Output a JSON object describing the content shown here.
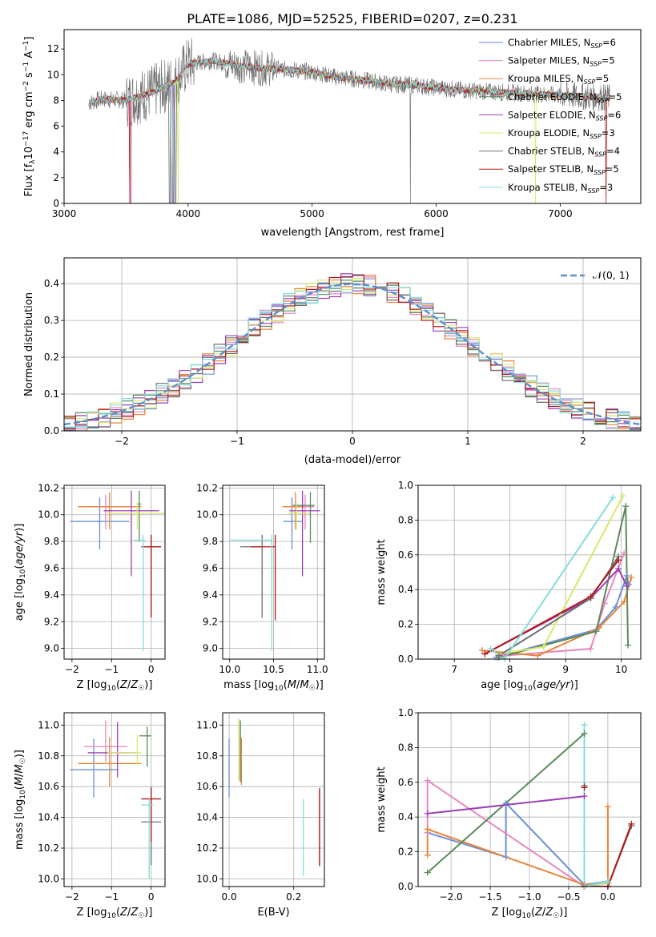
{
  "title": "PLATE=1086, MJD=52525, FIBERID=0207, z=0.231",
  "colors": [
    "#6b8fd6",
    "#e887c0",
    "#e8843a",
    "#5a8a5a",
    "#9b3fb5",
    "#d8e86a",
    "#6d6d6d",
    "#b31b1b",
    "#86dcdc"
  ],
  "chart_data": [
    {
      "type": "line",
      "name": "spectrum",
      "xlabel": "wavelength [Angstrom, rest frame]",
      "ylabel": "Flux [f_λ 10^-17 erg cm^-2 s^-1 A^-1]",
      "xlim": [
        3000,
        7650
      ],
      "ylim": [
        0,
        13.5
      ],
      "xticks": [
        "3000",
        "4000",
        "5000",
        "6000",
        "7000"
      ],
      "yticks": [
        "0",
        "2",
        "4",
        "6",
        "8",
        "10",
        "12"
      ],
      "legend": [
        "Chabrier MILES, N_SSP=6",
        "Salpeter MILES, N_SSP=5",
        "Kroupa MILES, N_SSP=5",
        "Chabrier ELODIE, N_SSP=5",
        "Salpeter ELODIE, N_SSP=6",
        "Kroupa ELODIE, N_SSP=3",
        "Chabrier STELIB, N_SSP=4",
        "Salpeter STELIB, N_SSP=5",
        "Kroupa STELIB, N_SSP=3"
      ],
      "legend_position": "upper-right",
      "continuum": [
        [
          3200,
          7.8
        ],
        [
          3300,
          8.1
        ],
        [
          3500,
          8.0
        ],
        [
          3700,
          8.6
        ],
        [
          3900,
          9.5
        ],
        [
          4000,
          10.8
        ],
        [
          4200,
          11.1
        ],
        [
          4400,
          10.7
        ],
        [
          4600,
          10.5
        ],
        [
          4800,
          10.4
        ],
        [
          5000,
          10.2
        ],
        [
          5200,
          9.8
        ],
        [
          5400,
          9.6
        ],
        [
          5600,
          9.3
        ],
        [
          5800,
          9.2
        ],
        [
          6000,
          9.0
        ],
        [
          6200,
          8.8
        ],
        [
          6400,
          8.7
        ],
        [
          6600,
          8.6
        ],
        [
          6800,
          8.5
        ],
        [
          7000,
          8.4
        ],
        [
          7200,
          8.3
        ],
        [
          7400,
          8.2
        ]
      ]
    },
    {
      "type": "histogram",
      "name": "residuals",
      "xlabel": "(data-model)/error",
      "ylabel": "Normed distribution",
      "xlim": [
        -2.5,
        2.5
      ],
      "ylim": [
        0,
        0.47
      ],
      "xticks": [
        "−2",
        "−1",
        "0",
        "1",
        "2"
      ],
      "yticks": [
        "0.0",
        "0.1",
        "0.2",
        "0.3",
        "0.4"
      ],
      "legend": [
        "𝒩(0, 1)"
      ],
      "legend_position": "upper-right",
      "bin_width": 0.1
    },
    {
      "type": "scatter",
      "name": "age-vs-Z",
      "xlabel": "Z [log10(Z/Z☉)]",
      "ylabel": "age  [log10(age/yr)]",
      "xlim": [
        -2.2,
        0.35
      ],
      "ylim": [
        8.92,
        10.22
      ],
      "xticks": [
        "−2",
        "−1",
        "0"
      ],
      "yticks": [
        "9.0",
        "9.2",
        "9.4",
        "9.6",
        "9.8",
        "10.0",
        "10.2"
      ],
      "points": [
        {
          "x": -1.3,
          "xerr": [
            0.75,
            0.75
          ],
          "y": 9.95,
          "yerr": [
            0.21,
            0.18
          ]
        },
        {
          "x": -1.15,
          "xerr": [
            0.55,
            0.55
          ],
          "y": 10.06,
          "yerr": [
            0.17,
            0.09
          ]
        },
        {
          "x": -1.05,
          "xerr": [
            0.8,
            0.8
          ],
          "y": 10.06,
          "yerr": [
            0.17,
            0.11
          ]
        },
        {
          "x": -0.3,
          "xerr": [
            0.05,
            0.05
          ],
          "y": 10.08,
          "yerr": [
            0.28,
            0.1
          ]
        },
        {
          "x": -0.5,
          "xerr": [
            0.7,
            0.7
          ],
          "y": 10.03,
          "yerr": [
            0.49,
            0.15
          ]
        },
        {
          "x": -0.35,
          "xerr": [
            0.75,
            0.75
          ],
          "y": 10.01,
          "yerr": [
            0.12,
            0.08
          ]
        },
        {
          "x": 0.0,
          "xerr": [
            0.2,
            0.25
          ],
          "y": 9.76,
          "yerr": [
            0.52,
            0.09
          ]
        },
        {
          "x": 0.0,
          "xerr": [
            0.25,
            0.25
          ],
          "y": 9.76,
          "yerr": [
            0.53,
            0.09
          ]
        },
        {
          "x": -0.2,
          "xerr": [
            0.25,
            0.05
          ],
          "y": 9.81,
          "yerr": [
            0.83,
            0.04
          ]
        }
      ]
    },
    {
      "type": "scatter",
      "name": "age-vs-mass",
      "xlabel": "mass [log10(M/M☉)]",
      "ylabel": "",
      "xlim": [
        9.92,
        11.08
      ],
      "ylim": [
        8.92,
        10.22
      ],
      "xticks": [
        "10.0",
        "10.5",
        "11.0"
      ],
      "yticks": [
        "9.0",
        "9.2",
        "9.4",
        "9.6",
        "9.8",
        "10.0",
        "10.2"
      ],
      "points": [
        {
          "x": 10.71,
          "xerr": [
            0.1,
            0.12
          ],
          "y": 9.95,
          "yerr": [
            0.21,
            0.18
          ]
        },
        {
          "x": 10.86,
          "xerr": [
            0.1,
            0.1
          ],
          "y": 10.06,
          "yerr": [
            0.17,
            0.09
          ]
        },
        {
          "x": 10.75,
          "xerr": [
            0.15,
            0.1
          ],
          "y": 10.06,
          "yerr": [
            0.17,
            0.11
          ]
        },
        {
          "x": 10.92,
          "xerr": [
            0.2,
            0.05
          ],
          "y": 10.07,
          "yerr": [
            0.28,
            0.1
          ]
        },
        {
          "x": 10.83,
          "xerr": [
            0.15,
            0.2
          ],
          "y": 10.03,
          "yerr": [
            0.49,
            0.15
          ]
        },
        {
          "x": 10.76,
          "xerr": [
            0.1,
            0.15
          ],
          "y": 10.01,
          "yerr": [
            0.12,
            0.08
          ]
        },
        {
          "x": 10.37,
          "xerr": [
            0.25,
            0.0
          ],
          "y": 9.76,
          "yerr": [
            0.53,
            0.09
          ]
        },
        {
          "x": 10.52,
          "xerr": [
            0.28,
            0.0
          ],
          "y": 9.76,
          "yerr": [
            0.55,
            0.09
          ]
        },
        {
          "x": 10.48,
          "xerr": [
            0.48,
            0.0
          ],
          "y": 9.81,
          "yerr": [
            0.83,
            0.04
          ]
        }
      ]
    },
    {
      "type": "line",
      "name": "mass-weight-vs-age",
      "xlabel": "age  [log10(age/yr)]",
      "ylabel": "mass weight",
      "xlim": [
        6.35,
        10.35
      ],
      "ylim": [
        0,
        1.0
      ],
      "xticks": [
        "7",
        "8",
        "9",
        "10"
      ],
      "yticks": [
        "0.0",
        "0.2",
        "0.4",
        "0.6",
        "0.8",
        "1.0"
      ],
      "series": [
        {
          "x": [
            7.75,
            9.55,
            9.9,
            10.1,
            10.13
          ],
          "y": [
            0.01,
            0.17,
            0.3,
            0.48,
            0.43
          ]
        },
        {
          "x": [
            7.9,
            9.45,
            9.7,
            10.05
          ],
          "y": [
            0.02,
            0.06,
            0.32,
            0.61
          ]
        },
        {
          "x": [
            7.5,
            8.5,
            9.6,
            10.05,
            10.18
          ],
          "y": [
            0.05,
            0.02,
            0.18,
            0.33,
            0.47
          ]
        },
        {
          "x": [
            7.8,
            9.55,
            10.08,
            10.12
          ],
          "y": [
            0.01,
            0.16,
            0.88,
            0.08
          ]
        },
        {
          "x": [
            7.55,
            9.45,
            9.95,
            10.1
          ],
          "y": [
            0.03,
            0.35,
            0.52,
            0.42
          ]
        },
        {
          "x": [
            7.8,
            8.6,
            10.03
          ],
          "y": [
            0.03,
            0.07,
            0.94
          ]
        },
        {
          "x": [
            7.8,
            9.45,
            9.95
          ],
          "y": [
            0.02,
            0.35,
            0.59
          ]
        },
        {
          "x": [
            7.55,
            9.45,
            9.95
          ],
          "y": [
            0.03,
            0.36,
            0.57
          ]
        },
        {
          "x": [
            7.65,
            7.9,
            9.85
          ],
          "y": [
            0.06,
            0.0,
            0.93
          ]
        }
      ]
    },
    {
      "type": "scatter",
      "name": "mass-vs-Z",
      "xlabel": "Z [log10(Z/Z☉)]",
      "ylabel": "mass [log10(M/M☉)]",
      "xlim": [
        -2.2,
        0.35
      ],
      "ylim": [
        9.95,
        11.08
      ],
      "xticks": [
        "−2",
        "−1",
        "0"
      ],
      "yticks": [
        "10.0",
        "10.2",
        "10.4",
        "10.6",
        "10.8",
        "11.0"
      ],
      "points": [
        {
          "x": -1.45,
          "xerr": [
            0.6,
            0.6
          ],
          "y": 10.71,
          "yerr": [
            0.18,
            0.2
          ]
        },
        {
          "x": -1.15,
          "xerr": [
            0.55,
            0.55
          ],
          "y": 10.86,
          "yerr": [
            0.1,
            0.17
          ]
        },
        {
          "x": -1.05,
          "xerr": [
            0.8,
            0.8
          ],
          "y": 10.75,
          "yerr": [
            0.15,
            0.17
          ]
        },
        {
          "x": -0.1,
          "xerr": [
            0.2,
            0.1
          ],
          "y": 10.93,
          "yerr": [
            0.2,
            0.06
          ]
        },
        {
          "x": -0.85,
          "xerr": [
            0.75,
            0.45
          ],
          "y": 10.82,
          "yerr": [
            0.16,
            0.2
          ]
        },
        {
          "x": -0.35,
          "xerr": [
            0.75,
            0.1
          ],
          "y": 10.82,
          "yerr": [
            0.08,
            0.12
          ]
        },
        {
          "x": 0.0,
          "xerr": [
            0.25,
            0.25
          ],
          "y": 10.37,
          "yerr": [
            0.28,
            0.23
          ]
        },
        {
          "x": 0.0,
          "xerr": [
            0.25,
            0.25
          ],
          "y": 10.52,
          "yerr": [
            0.28,
            0.07
          ]
        },
        {
          "x": -0.05,
          "xerr": [
            0.2,
            0.1
          ],
          "y": 10.48,
          "yerr": [
            0.48,
            0.04
          ]
        }
      ]
    },
    {
      "type": "scatter",
      "name": "mass-vs-ebv",
      "xlabel": "E(B-V)",
      "ylabel": "",
      "xlim": [
        -0.02,
        0.295
      ],
      "ylim": [
        9.95,
        11.08
      ],
      "xticks": [
        "0.0",
        "0.2"
      ],
      "yticks": [
        "10.0",
        "10.2",
        "10.4",
        "10.6",
        "10.8",
        "11.0"
      ],
      "points": [
        {
          "x": 0.0,
          "y": 10.71,
          "yerr": [
            0.18,
            0.2
          ]
        },
        {
          "x": 0.03,
          "y": 10.86,
          "yerr": [
            0.22,
            0.17
          ]
        },
        {
          "x": 0.038,
          "y": 10.75,
          "yerr": [
            0.14,
            0.17
          ]
        },
        {
          "x": 0.035,
          "y": 10.83,
          "yerr": [
            0.2,
            0.2
          ]
        },
        {
          "x": 0.03,
          "y": 10.82,
          "yerr": [
            0.18,
            0.22
          ]
        },
        {
          "x": 0.03,
          "y": 10.82,
          "yerr": [
            0.18,
            0.22
          ]
        },
        {
          "x": 0.28,
          "y": 10.33,
          "yerr": [
            0.25,
            0.25
          ]
        },
        {
          "x": 0.28,
          "y": 10.37,
          "yerr": [
            0.28,
            0.22
          ]
        },
        {
          "x": 0.23,
          "y": 10.27,
          "yerr": [
            0.25,
            0.25
          ]
        }
      ]
    },
    {
      "type": "line",
      "name": "mass-weight-vs-Z",
      "xlabel": "Z [log10(Z/Z☉)]",
      "ylabel": "mass weight",
      "xlim": [
        -2.42,
        0.42
      ],
      "ylim": [
        0,
        1.0
      ],
      "xticks": [
        "−2.0",
        "−1.5",
        "−1.0",
        "−0.5",
        "0.0"
      ],
      "yticks": [
        "0.0",
        "0.2",
        "0.4",
        "0.6",
        "0.8",
        "1.0"
      ],
      "series": [
        {
          "x": [
            -2.3,
            -1.3,
            -1.3,
            -0.3,
            0.0
          ],
          "y": [
            0.31,
            0.17,
            0.48,
            0.01,
            0.03
          ]
        },
        {
          "x": [
            -0.0,
            -0.3,
            -2.3,
            -2.3
          ],
          "y": [
            0.0,
            0.0,
            0.61,
            0.31
          ]
        },
        {
          "x": [
            -2.3,
            -2.3,
            -0.3,
            0.0,
            0.0
          ],
          "y": [
            0.18,
            0.33,
            0.01,
            0.02,
            0.46
          ]
        },
        {
          "x": [
            -2.3,
            -0.3,
            -0.3,
            0.0
          ],
          "y": [
            0.08,
            0.88,
            0.0,
            0.02
          ]
        },
        {
          "x": [
            -2.3,
            -0.3,
            -0.3,
            0.0
          ],
          "y": [
            0.42,
            0.52,
            0.0,
            0.02
          ]
        },
        {
          "x": [
            -0.3,
            -0.3,
            0.0
          ],
          "y": [
            0.93,
            0.0,
            0.02
          ]
        },
        {
          "x": [
            -0.3,
            -0.3,
            0.0,
            0.3
          ],
          "y": [
            0.58,
            0.0,
            0.0,
            0.35
          ]
        },
        {
          "x": [
            -0.3,
            -0.3,
            0.0,
            0.3
          ],
          "y": [
            0.57,
            0.0,
            0.0,
            0.36
          ]
        },
        {
          "x": [
            -0.3,
            -0.3,
            0.0
          ],
          "y": [
            0.93,
            0.0,
            0.03
          ]
        }
      ]
    }
  ]
}
